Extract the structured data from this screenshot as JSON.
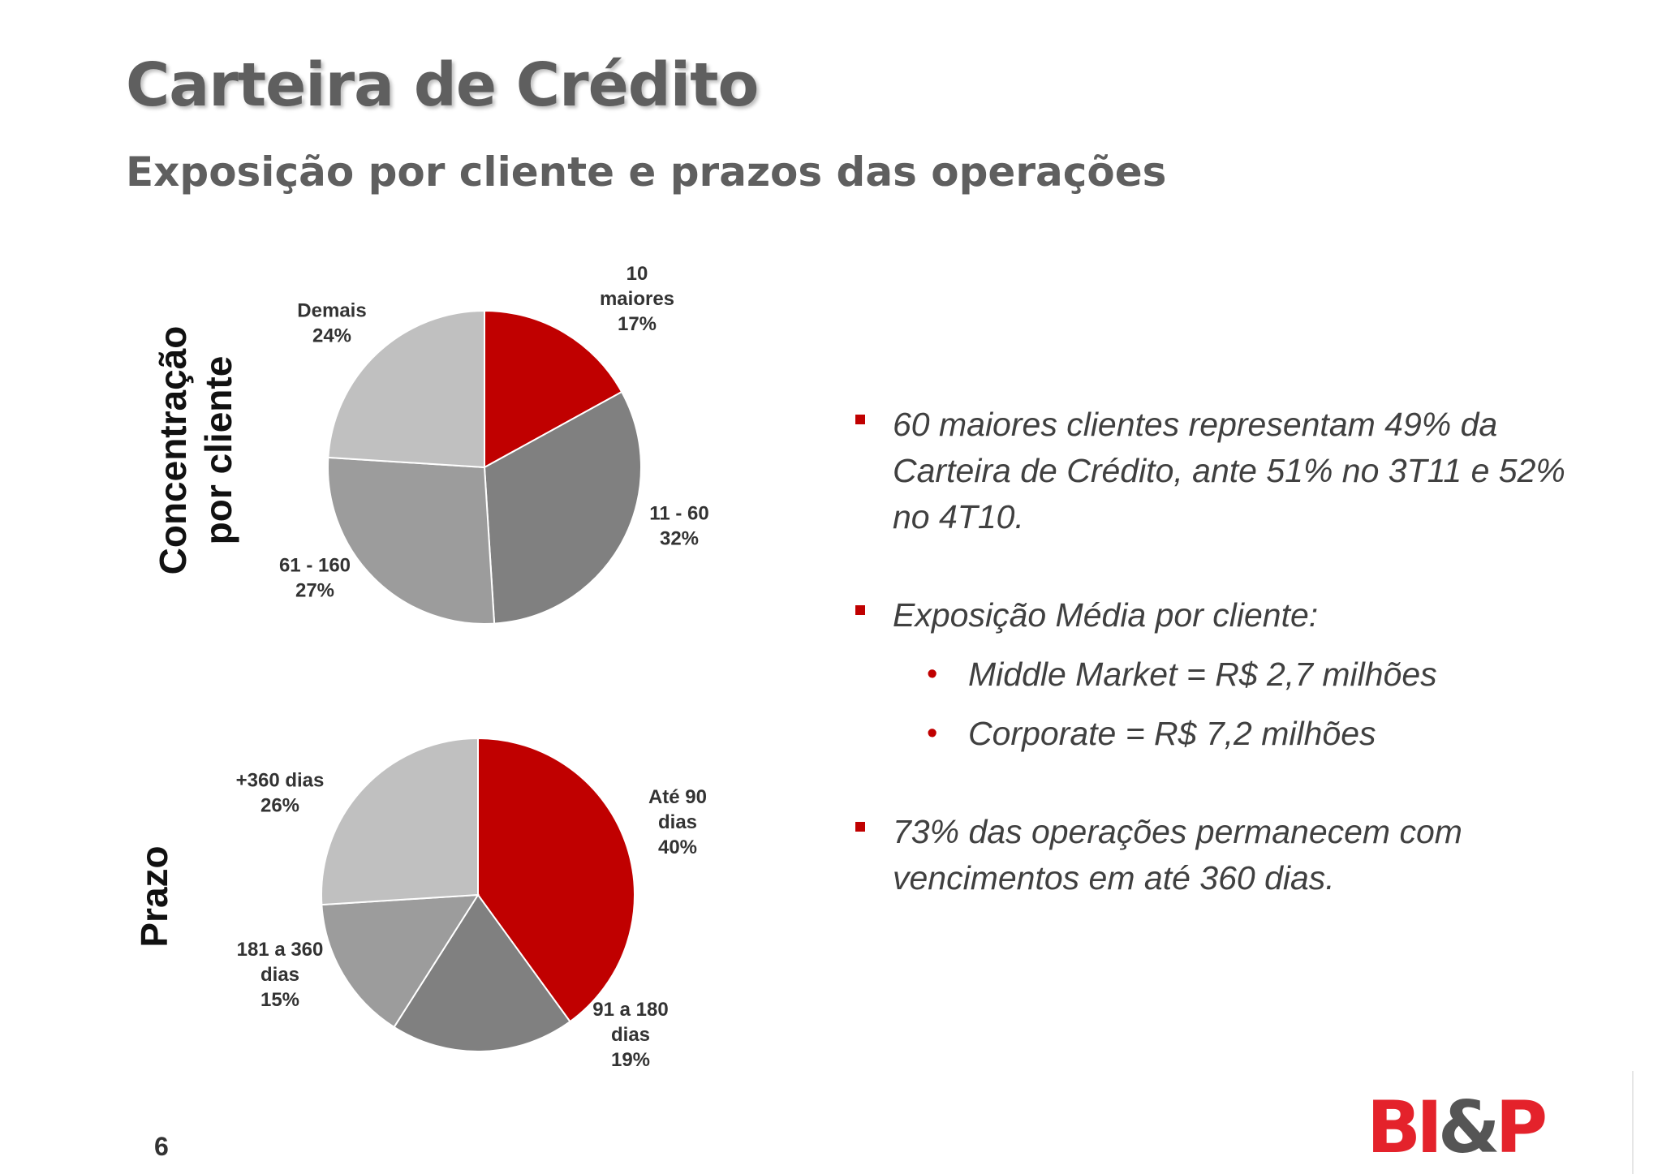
{
  "header": {
    "title": "Carteira de Crédito",
    "subtitle": "Exposição por cliente e prazos das operações"
  },
  "side_labels": {
    "concentracao_line1": "Concentração",
    "concentracao_line2": "por cliente",
    "prazo": "Prazo"
  },
  "chart_data": [
    {
      "type": "pie",
      "slices": [
        {
          "label": [
            "10",
            "maiores"
          ],
          "pct_label": "17%",
          "value": 17,
          "color": "#c00000"
        },
        {
          "label": [
            "11 - 60"
          ],
          "pct_label": "32%",
          "value": 32,
          "color": "#808080"
        },
        {
          "label": [
            "61 - 160"
          ],
          "pct_label": "27%",
          "value": 27,
          "color": "#9c9c9c"
        },
        {
          "label": [
            "Demais"
          ],
          "pct_label": "24%",
          "value": 24,
          "color": "#c0c0c0"
        }
      ]
    },
    {
      "type": "pie",
      "slices": [
        {
          "label": [
            "Até 90",
            "dias"
          ],
          "pct_label": "40%",
          "value": 40,
          "color": "#c00000"
        },
        {
          "label": [
            "91 a 180",
            "dias"
          ],
          "pct_label": "19%",
          "value": 19,
          "color": "#808080"
        },
        {
          "label": [
            "181 a 360",
            "dias"
          ],
          "pct_label": "15%",
          "value": 15,
          "color": "#9c9c9c"
        },
        {
          "label": [
            "+360 dias"
          ],
          "pct_label": "26%",
          "value": 26,
          "color": "#c0c0c0"
        }
      ]
    }
  ],
  "bullets": {
    "b1": "60 maiores clientes representam 49% da Carteira de Crédito, ante 51% no 3T11 e 52% no 4T10.",
    "b2": "Exposição Média por cliente:",
    "b2_sub1": "Middle Market = R$ 2,7 milhões",
    "b2_sub2": "Corporate = R$ 7,2 milhões",
    "b3": "73% das operações permanecem com vencimentos em até 360 dias."
  },
  "footer": {
    "page_number": "6",
    "logo_left": "BI",
    "logo_amp": "&",
    "logo_right": "P"
  }
}
